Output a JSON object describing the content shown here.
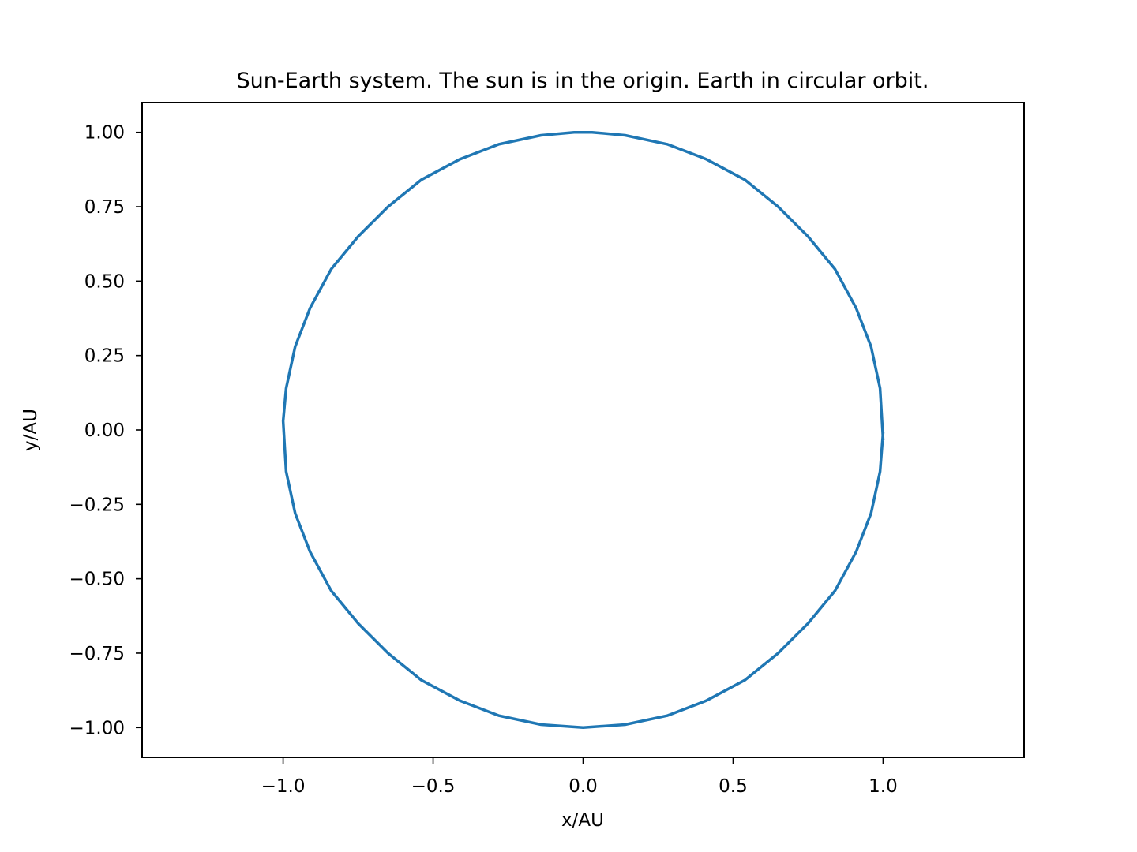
{
  "chart_data": {
    "type": "line",
    "title": "Sun-Earth system. The sun is in the origin. Earth in circular orbit.",
    "xlabel": "x/AU",
    "ylabel": "y/AU",
    "xlim": [
      -1.47,
      1.47
    ],
    "ylim": [
      -1.1,
      1.1
    ],
    "x_ticks": [
      -1.0,
      -0.5,
      0.0,
      0.5,
      1.0
    ],
    "x_tick_labels": [
      "−1.0",
      "−0.5",
      "0.0",
      "0.5",
      "1.0"
    ],
    "y_ticks": [
      1.0,
      0.75,
      0.5,
      0.25,
      0.0,
      -0.25,
      -0.5,
      -0.75,
      -1.0
    ],
    "y_tick_labels": [
      "1.00",
      "0.75",
      "0.50",
      "0.25",
      "0.00",
      "−0.25",
      "−0.50",
      "−0.75",
      "−1.00"
    ],
    "grid": false,
    "series": [
      {
        "color": "#1f77b4",
        "x": [
          1.0,
          0.99,
          0.96,
          0.91,
          0.84,
          0.75,
          0.65,
          0.54,
          0.41,
          0.28,
          0.14,
          0.03,
          -0.03,
          -0.14,
          -0.28,
          -0.41,
          -0.54,
          -0.65,
          -0.75,
          -0.84,
          -0.91,
          -0.96,
          -0.99,
          -1.0,
          -0.99,
          -0.96,
          -0.91,
          -0.84,
          -0.75,
          -0.65,
          -0.54,
          -0.41,
          -0.28,
          -0.14,
          0.0,
          0.14,
          0.28,
          0.41,
          0.54,
          0.65,
          0.75,
          0.84,
          0.91,
          0.96,
          0.99,
          1.0
        ],
        "y": [
          -0.03,
          0.14,
          0.28,
          0.41,
          0.54,
          0.65,
          0.75,
          0.84,
          0.91,
          0.96,
          0.99,
          1.0,
          1.0,
          0.99,
          0.96,
          0.91,
          0.84,
          0.75,
          0.65,
          0.54,
          0.41,
          0.28,
          0.14,
          0.03,
          -0.14,
          -0.28,
          -0.41,
          -0.54,
          -0.65,
          -0.75,
          -0.84,
          -0.91,
          -0.96,
          -0.99,
          -1.0,
          -0.99,
          -0.96,
          -0.91,
          -0.84,
          -0.75,
          -0.65,
          -0.54,
          -0.41,
          -0.28,
          -0.14,
          -0.01
        ]
      }
    ]
  }
}
